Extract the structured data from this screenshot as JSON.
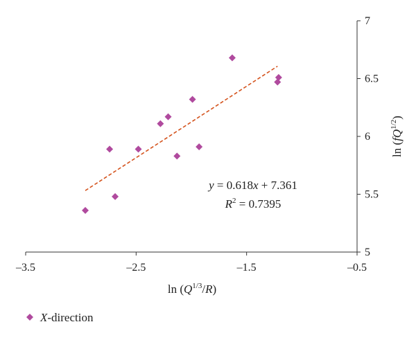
{
  "chart_data": {
    "type": "scatter",
    "xlabel": "ln (Q^{1/3}/R)",
    "ylabel": "ln (fQ^{1/2})",
    "xlim": [
      -3.5,
      -0.5
    ],
    "ylim": [
      5,
      7
    ],
    "x_ticks": [
      -3.5,
      -2.5,
      -1.5,
      -0.5
    ],
    "y_ticks": [
      5,
      5.5,
      6,
      6.5,
      7
    ],
    "x_tick_labels": [
      "–3.5",
      "–2.5",
      "–1.5",
      "–0.5"
    ],
    "y_tick_labels": [
      "5",
      "5.5",
      "6",
      "6.5",
      "7"
    ],
    "y_axis_position": "right",
    "grid": false,
    "legend_position": "bottom-left",
    "series": [
      {
        "name": "X-direction",
        "marker": "diamond",
        "color": "#b04a9e",
        "points": [
          {
            "x": -2.96,
            "y": 5.36
          },
          {
            "x": -2.74,
            "y": 5.89
          },
          {
            "x": -2.69,
            "y": 5.48
          },
          {
            "x": -2.48,
            "y": 5.89
          },
          {
            "x": -2.28,
            "y": 6.11
          },
          {
            "x": -2.21,
            "y": 6.17
          },
          {
            "x": -2.13,
            "y": 5.83
          },
          {
            "x": -1.99,
            "y": 6.32
          },
          {
            "x": -1.93,
            "y": 5.91
          },
          {
            "x": -1.63,
            "y": 6.68
          },
          {
            "x": -1.22,
            "y": 6.47
          },
          {
            "x": -1.21,
            "y": 6.51
          }
        ]
      }
    ],
    "trendline": {
      "slope": 0.618,
      "intercept": 7.361,
      "x_start": -2.96,
      "x_end": -1.22,
      "color": "#d4521c",
      "style": "dashed"
    },
    "annotations": {
      "equation": "y = 0.618x + 7.361",
      "r_squared": "R² = 0.7395"
    }
  }
}
